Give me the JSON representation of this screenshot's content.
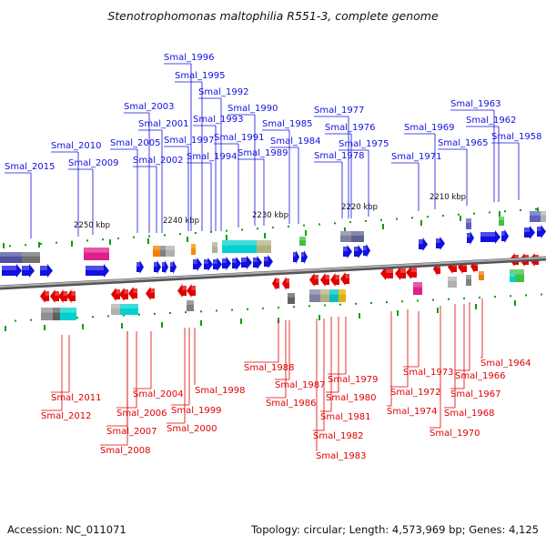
{
  "title": "Stenotrophomonas maltophilia R551-3, complete genome",
  "footer": {
    "accession": "Accession: NC_011071",
    "summary": "Topology: circular; Length: 4,573,969 bp; Genes: 4,125"
  },
  "scale_labels": [
    "2250 kbp",
    "2240 kbp",
    "2230 kbp",
    "2220 kbp",
    "2210 kbp"
  ],
  "colors": {
    "forward": "#1010e0",
    "reverse": "#e00000",
    "backbone": "#888888",
    "tick": "#00a000"
  },
  "forward_genes": [
    "Smal_2015",
    "Smal_2010",
    "Smal_2009",
    "Smal_2005",
    "Smal_2003",
    "Smal_2002",
    "Smal_2001",
    "Smal_1997",
    "Smal_1996",
    "Smal_1995",
    "Smal_1994",
    "Smal_1993",
    "Smal_1992",
    "Smal_1991",
    "Smal_1990",
    "Smal_1989",
    "Smal_1985",
    "Smal_1984",
    "Smal_1978",
    "Smal_1977",
    "Smal_1976",
    "Smal_1975",
    "Smal_1971",
    "Smal_1969",
    "Smal_1965",
    "Smal_1963",
    "Smal_1962",
    "Smal_1958"
  ],
  "reverse_genes": [
    "Smal_2011",
    "Smal_2012",
    "Smal_2008",
    "Smal_2007",
    "Smal_2006",
    "Smal_2004",
    "Smal_2000",
    "Smal_1999",
    "Smal_1998",
    "Smal_1988",
    "Smal_1987",
    "Smal_1986",
    "Smal_1983",
    "Smal_1982",
    "Smal_1981",
    "Smal_1980",
    "Smal_1979",
    "Smal_1974",
    "Smal_1973",
    "Smal_1972",
    "Smal_1970",
    "Smal_1968",
    "Smal_1967",
    "Smal_1966",
    "Smal_1964"
  ]
}
